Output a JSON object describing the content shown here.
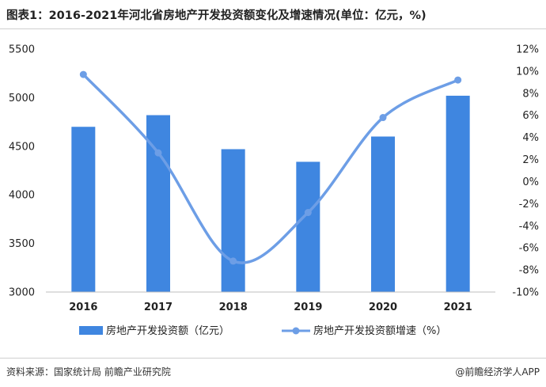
{
  "title": "图表1：2016-2021年河北省房地产开发投资额变化及增速情况(单位：亿元，%)",
  "source": "资料来源：国家统计局 前瞻产业研究院",
  "credit": "@前瞻经济学人APP",
  "colors": {
    "bar": "#3f86e0",
    "line": "#6d9ee6",
    "axis": "#bfbfbf",
    "text": "#222222"
  },
  "chart_data": {
    "type": "bar",
    "categories": [
      "2016",
      "2017",
      "2018",
      "2019",
      "2020",
      "2021"
    ],
    "series": [
      {
        "name": "房地产开发投资额（亿元）",
        "type": "bar",
        "axis": "left",
        "values": [
          4700,
          4820,
          4470,
          4340,
          4600,
          5020
        ]
      },
      {
        "name": "房地产开发投资额增速（%）",
        "type": "line",
        "axis": "right",
        "values": [
          9.7,
          2.6,
          -7.2,
          -2.8,
          5.8,
          9.2
        ]
      }
    ],
    "left_axis": {
      "min": 3000,
      "max": 5500,
      "ticks": [
        "3000",
        "3500",
        "4000",
        "4500",
        "5000",
        "5500"
      ]
    },
    "right_axis": {
      "min": -10,
      "max": 12,
      "ticks": [
        "-10%",
        "-8%",
        "-6%",
        "-4%",
        "-2%",
        "0%",
        "2%",
        "4%",
        "6%",
        "8%",
        "10%",
        "12%"
      ]
    },
    "legend": "bottom"
  }
}
